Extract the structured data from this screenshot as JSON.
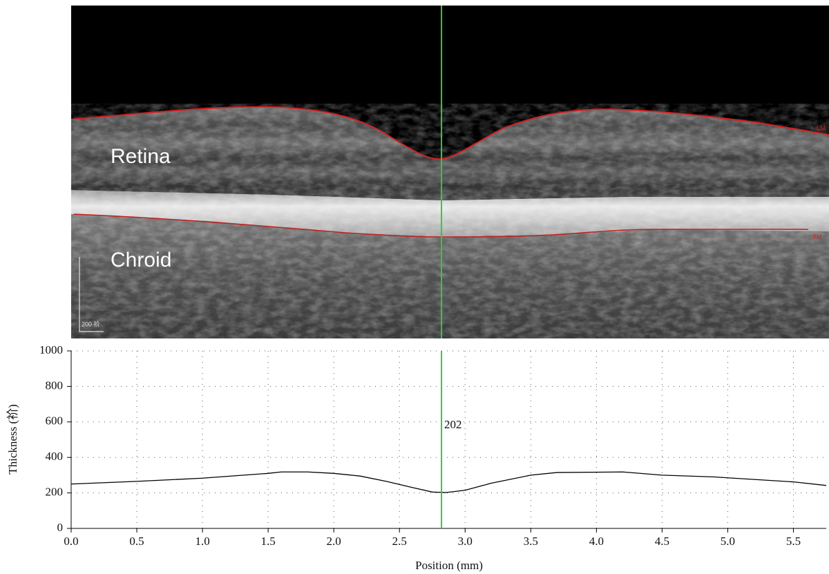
{
  "image": {
    "retina_label": "Retina",
    "choroid_label": "Chroid",
    "scale_label": "200 祄",
    "ilm_label": "ILM",
    "bm_label": "BM"
  },
  "chart_data": {
    "type": "line",
    "x_label": "Position (mm)",
    "y_label": "Thickness (祄)",
    "x": [
      0,
      0.5,
      1.0,
      1.5,
      1.6,
      1.8,
      2.0,
      2.2,
      2.4,
      2.6,
      2.75,
      2.85,
      3.0,
      3.2,
      3.5,
      3.7,
      4.2,
      4.5,
      4.9,
      5.0,
      5.5,
      5.75
    ],
    "values": [
      250,
      265,
      283,
      310,
      318,
      318,
      310,
      295,
      265,
      230,
      205,
      202,
      215,
      255,
      300,
      315,
      318,
      300,
      290,
      285,
      262,
      242
    ],
    "color": "#000000",
    "cursor": {
      "x": 2.82,
      "text": "202",
      "color": "#2ecc40"
    },
    "xlim": [
      0,
      5.75
    ],
    "ylim": [
      0,
      1000
    ],
    "xticks": [
      {
        "value": 0,
        "label": "0.0"
      },
      0.5,
      {
        "value": 1,
        "label": "1.0"
      },
      1.5,
      {
        "value": 2,
        "label": "2.0"
      },
      2.5,
      {
        "value": 3,
        "label": "3.0"
      },
      3.5,
      {
        "value": 4,
        "label": "4.0"
      },
      4.5,
      {
        "value": 5,
        "label": "5.0"
      },
      5.5
    ],
    "yticks": [
      0,
      200,
      400,
      600,
      800,
      1000
    ],
    "grid": true
  }
}
